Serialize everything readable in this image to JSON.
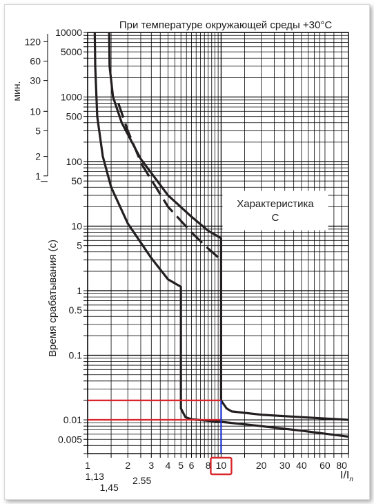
{
  "chart_data": {
    "type": "line",
    "title": "При температуре окружающей среды +30°С",
    "xlabel": "I/I",
    "xlabel_sub": "n",
    "ylabel": "Время срабатывания (с)",
    "ylabel_minutes": "мин.",
    "annotation": {
      "line1": "Характеристика",
      "line2": "C"
    },
    "x_scale": "log",
    "y_scale": "log",
    "xlim": [
      1,
      90
    ],
    "ylim": [
      0.003,
      10000
    ],
    "grid": true,
    "x_tick_labels": [
      {
        "x": 1,
        "label": "1"
      },
      {
        "x": 2,
        "label": "2"
      },
      {
        "x": 3,
        "label": "3"
      },
      {
        "x": 4,
        "label": "4"
      },
      {
        "x": 5,
        "label": "5"
      },
      {
        "x": 6,
        "label": "6"
      },
      {
        "x": 8,
        "label": "8"
      },
      {
        "x": 10,
        "label": "10"
      },
      {
        "x": 20,
        "label": "20"
      },
      {
        "x": 30,
        "label": "30"
      },
      {
        "x": 40,
        "label": "40"
      },
      {
        "x": 60,
        "label": "60"
      },
      {
        "x": 80,
        "label": "80"
      }
    ],
    "x_extra_labels": [
      {
        "x": 1.13,
        "label": "1,13"
      },
      {
        "x": 1.45,
        "label": "1,45"
      },
      {
        "x": 2.55,
        "label": "2.55"
      }
    ],
    "y_tick_labels": [
      {
        "y": 10000,
        "label": "10000"
      },
      {
        "y": 5000,
        "label": "5000"
      },
      {
        "y": 1000,
        "label": "1000"
      },
      {
        "y": 500,
        "label": "500"
      },
      {
        "y": 100,
        "label": "100"
      },
      {
        "y": 50,
        "label": "50"
      },
      {
        "y": 10,
        "label": "10"
      },
      {
        "y": 5,
        "label": "5"
      },
      {
        "y": 1,
        "label": "1"
      },
      {
        "y": 0.5,
        "label": "0.5"
      },
      {
        "y": 0.1,
        "label": "0.1"
      },
      {
        "y": 0.01,
        "label": "0.01"
      },
      {
        "y": 0.005,
        "label": "0.005"
      }
    ],
    "minute_tick_labels": [
      {
        "min": 120,
        "label": "120"
      },
      {
        "min": 60,
        "label": "60"
      },
      {
        "min": 30,
        "label": "30"
      },
      {
        "min": 10,
        "label": "10"
      },
      {
        "min": 5,
        "label": "5"
      },
      {
        "min": 2,
        "label": "2"
      },
      {
        "min": 1,
        "label": "1"
      }
    ],
    "series": [
      {
        "style": "solid",
        "points": [
          [
            1.13,
            10000
          ],
          [
            1.14,
            3000
          ],
          [
            1.18,
            500
          ],
          [
            1.3,
            120
          ],
          [
            1.5,
            40
          ],
          [
            2,
            11
          ],
          [
            3,
            3.2
          ],
          [
            4,
            1.5
          ],
          [
            5,
            1.15
          ],
          [
            5,
            0.015
          ],
          [
            5.4,
            0.011
          ],
          [
            6,
            0.0102
          ],
          [
            10,
            0.0093
          ],
          [
            20,
            0.008
          ],
          [
            40,
            0.0068
          ],
          [
            90,
            0.0055
          ]
        ]
      },
      {
        "style": "solid",
        "points": [
          [
            1.45,
            10000
          ],
          [
            1.46,
            3000
          ],
          [
            1.55,
            1000
          ],
          [
            1.8,
            400
          ],
          [
            2.5,
            110
          ],
          [
            4,
            30
          ],
          [
            6,
            14
          ],
          [
            8,
            8.5
          ],
          [
            10,
            6.5
          ],
          [
            10,
            0.02
          ],
          [
            11,
            0.015
          ],
          [
            12,
            0.0135
          ],
          [
            20,
            0.012
          ],
          [
            40,
            0.011
          ],
          [
            90,
            0.01
          ]
        ]
      },
      {
        "style": "dashed",
        "points": [
          [
            1.7,
            800
          ],
          [
            2,
            300
          ],
          [
            2.55,
            90
          ],
          [
            4,
            20
          ],
          [
            6,
            8
          ],
          [
            8,
            4.5
          ],
          [
            10,
            3
          ]
        ]
      }
    ],
    "reference_lines": {
      "horizontal_red": [
        0.02,
        0.01
      ],
      "vertical_blue": {
        "x": 10,
        "from": 0.003,
        "to": 0.02
      },
      "highlighted_tick": 10
    },
    "colors": {
      "curve": "#231f20",
      "grid": "#000000",
      "red": "#d9262b",
      "blue": "#1a2fd1"
    }
  }
}
